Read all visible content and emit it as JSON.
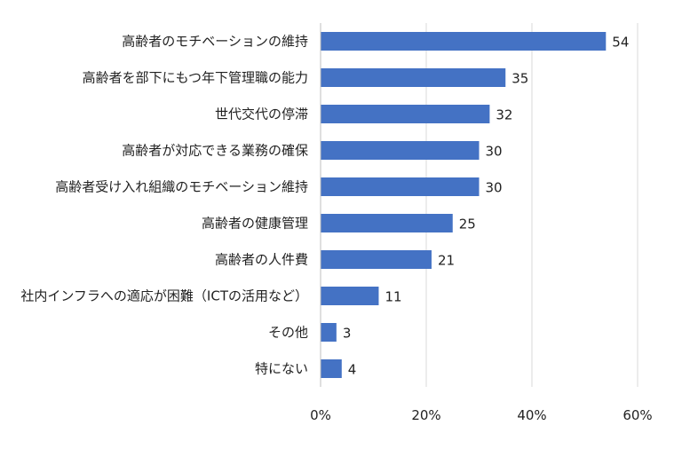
{
  "chart_data": {
    "type": "bar",
    "orientation": "horizontal",
    "categories": [
      "高齢者のモチベーションの維持",
      "高齢者を部下にもつ年下管理職の能力",
      "世代交代の停滞",
      "高齢者が対応できる業務の確保",
      "高齢者受け入れ組織のモチベーション維持",
      "高齢者の健康管理",
      "高齢者の人件費",
      "社内インフラへの適応が困難（ICTの活用など）",
      "その他",
      "特にない"
    ],
    "values": [
      54,
      35,
      32,
      30,
      30,
      25,
      21,
      11,
      3,
      4
    ],
    "xlim": [
      0,
      60
    ],
    "x_ticks": [
      0,
      20,
      40,
      60
    ],
    "x_tick_labels": [
      "0%",
      "20%",
      "40%",
      "60%"
    ],
    "grid": true,
    "bar_color": "#4472C4",
    "grid_color": "#D9D9D9",
    "title": "",
    "xlabel": "",
    "ylabel": ""
  }
}
